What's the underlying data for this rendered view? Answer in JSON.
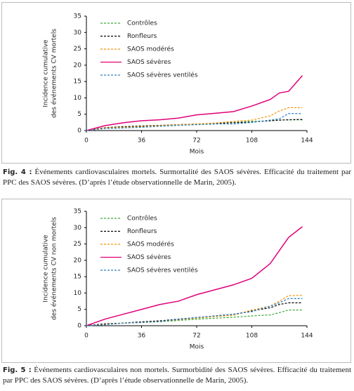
{
  "chart_data": [
    {
      "type": "line",
      "y_label": [
        "Incidence cumulative",
        "des événements CV mortels"
      ],
      "x_label": "Mois",
      "x": [
        0,
        12,
        24,
        36,
        48,
        60,
        72,
        84,
        96,
        108,
        120,
        126,
        132,
        141
      ],
      "xlim": [
        0,
        144
      ],
      "xticks": [
        0,
        36,
        72,
        108,
        144
      ],
      "ylim": [
        0,
        35
      ],
      "yticks": [
        0,
        5,
        10,
        15,
        20,
        25,
        30,
        35
      ],
      "series": [
        {
          "name": "Contrôles",
          "color": "#3aa935",
          "dashed": true,
          "values": [
            0,
            0.8,
            1,
            1.3,
            1.5,
            1.8,
            2,
            2.2,
            2.5,
            2.8,
            3,
            3.2,
            3.3,
            3.3
          ]
        },
        {
          "name": "Ronfleurs",
          "color": "#000000",
          "dashed": true,
          "values": [
            0,
            0.9,
            1.2,
            1.4,
            1.6,
            1.8,
            2,
            2.2,
            2.4,
            2.6,
            3,
            3.2,
            3.3,
            3.4
          ]
        },
        {
          "name": "SAOS modérés",
          "color": "#f29400",
          "dashed": true,
          "values": [
            0,
            0.8,
            1,
            1.2,
            1.5,
            1.8,
            2,
            2.3,
            2.8,
            3.2,
            4.5,
            6,
            7,
            7
          ]
        },
        {
          "name": "SAOS sévères",
          "color": "#e0007a",
          "dashed": false,
          "values": [
            0,
            1.5,
            2.4,
            3,
            3.3,
            3.8,
            4.8,
            5.3,
            5.8,
            7.5,
            9.5,
            11.5,
            12,
            16.8
          ]
        },
        {
          "name": "SAOS sévères ventilés",
          "color": "#2a7fc1",
          "dashed": true,
          "values": [
            0,
            0.6,
            0.8,
            1,
            1.3,
            1.6,
            1.8,
            2,
            2,
            2.5,
            3.2,
            3.6,
            5.2,
            5.2
          ]
        }
      ],
      "caption_label": "Fig. 4 :",
      "caption": "Événements cardiovasculaires mortels. Surmortalité des SAOS sévères. Efficacité du traitement par PPC des SAOS sévères. (D’après l’étude observationnelle de Marin, 2005)."
    },
    {
      "type": "line",
      "y_label": [
        "Incidence cumulative",
        "des événements CV non mortels"
      ],
      "x_label": "Mois",
      "x": [
        0,
        12,
        24,
        36,
        48,
        60,
        72,
        84,
        96,
        108,
        120,
        126,
        132,
        141
      ],
      "xlim": [
        0,
        144
      ],
      "xticks": [
        0,
        36,
        72,
        108,
        144
      ],
      "ylim": [
        0,
        35
      ],
      "yticks": [
        0,
        5,
        10,
        15,
        20,
        25,
        30,
        35
      ],
      "series": [
        {
          "name": "Contrôles",
          "color": "#3aa935",
          "dashed": true,
          "values": [
            0,
            0.5,
            0.8,
            1,
            1.2,
            1.6,
            2,
            2.3,
            2.6,
            3,
            3.3,
            4,
            4.8,
            4.8
          ]
        },
        {
          "name": "Ronfleurs",
          "color": "#000000",
          "dashed": true,
          "values": [
            0,
            0.6,
            0.8,
            1.2,
            1.5,
            2,
            2.5,
            3,
            3.5,
            4.5,
            5.5,
            6.5,
            7,
            7
          ]
        },
        {
          "name": "SAOS modérés",
          "color": "#f29400",
          "dashed": true,
          "values": [
            0,
            0.4,
            0.8,
            1,
            1.3,
            1.8,
            2.3,
            2.8,
            3.2,
            4.8,
            6,
            7.5,
            9.2,
            9.3
          ]
        },
        {
          "name": "SAOS sévères",
          "color": "#e0007a",
          "dashed": false,
          "values": [
            0,
            2,
            3.5,
            5,
            6.5,
            7.5,
            9.5,
            11,
            12.5,
            14.5,
            19,
            23,
            27,
            30.3
          ]
        },
        {
          "name": "SAOS sévères ventilés",
          "color": "#2a7fc1",
          "dashed": true,
          "values": [
            0,
            0.3,
            0.8,
            1,
            1.3,
            1.9,
            2.5,
            3,
            3.5,
            4.3,
            6,
            7,
            8.3,
            8.3
          ]
        }
      ],
      "caption_label": "Fig. 5 :",
      "caption": "Événements cardiovasculaires non mortels. Surmorbidité des SAOS sévères. Efficacité du traitement par PPC des SAOS sévères. (D’après l’étude observationnelle de Marin, 2005)."
    }
  ]
}
